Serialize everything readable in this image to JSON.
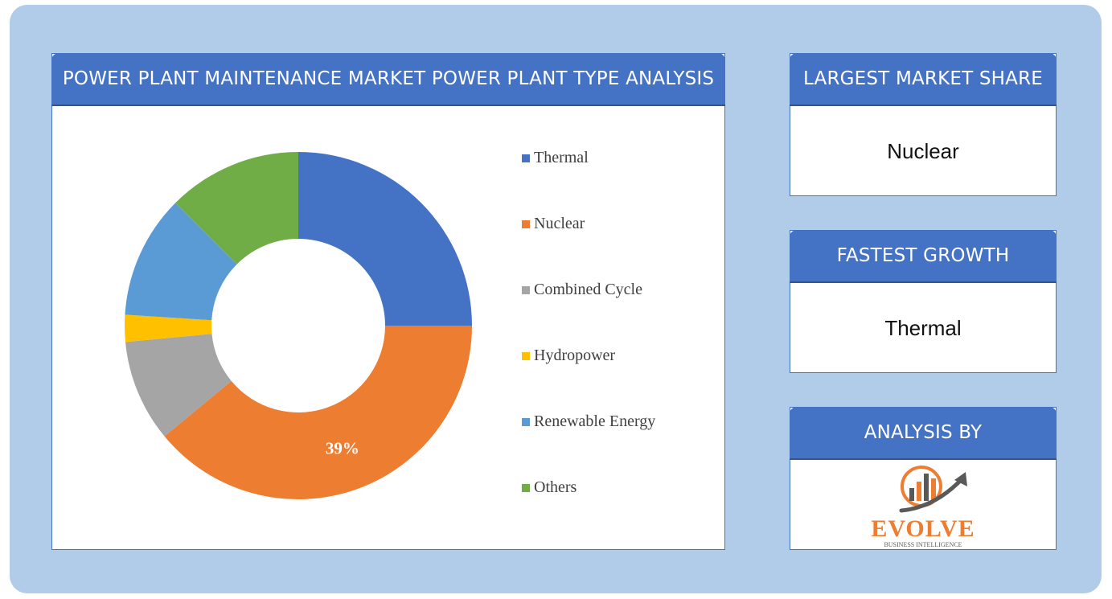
{
  "chart_data": {
    "type": "pie",
    "title": "POWER PLANT MAINTENANCE MARKET POWER PLANT TYPE ANALYSIS",
    "labels": [
      "Thermal",
      "Nuclear",
      "Combined Cycle",
      "Hydropower",
      "Renewable Energy",
      "Others"
    ],
    "values": [
      25,
      39,
      9.5,
      2.5,
      11.5,
      12.5
    ],
    "data_labels": [
      "",
      "39%",
      "",
      "",
      "",
      ""
    ],
    "colors": [
      "#4472c4",
      "#ed7d31",
      "#a5a5a5",
      "#ffc000",
      "#5b9bd5",
      "#70ad47"
    ],
    "donut": true,
    "legend_position": "right"
  },
  "panels": {
    "largest": {
      "title": "LARGEST MARKET SHARE",
      "value": "Nuclear"
    },
    "fastest": {
      "title": "FASTEST GROWTH",
      "value": "Thermal"
    },
    "analysis": {
      "title": "ANALYSIS BY"
    }
  },
  "logo": {
    "name": "EVOLVE",
    "tagline": "BUSINESS INTELLIGENCE",
    "brand_color": "#ed7d31",
    "arrow_color": "#595959"
  }
}
